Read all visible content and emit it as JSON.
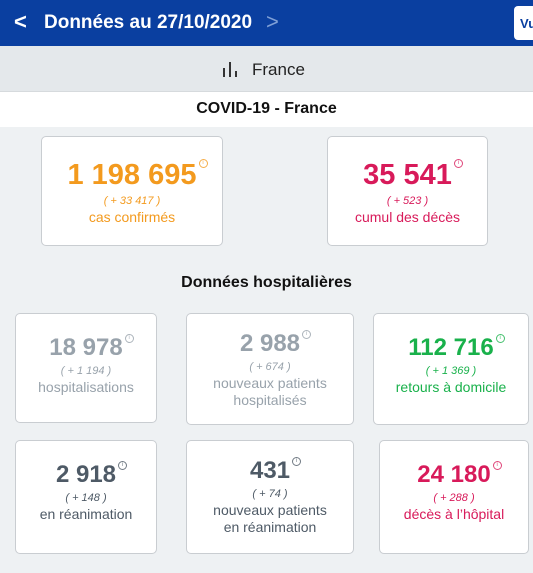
{
  "topbar": {
    "title": "Données au 27/10/2020",
    "back_glyph": "<",
    "forward_glyph": ">",
    "vu_label": "Vu"
  },
  "region": {
    "label": "France",
    "icon": "bar-chart-icon"
  },
  "covid": {
    "title": "COVID-19 - France",
    "cards": [
      {
        "value": "1 198 695",
        "delta": "( + 33 417 )",
        "label": "cas confirmés",
        "color": "#f39a1e"
      },
      {
        "value": "35 541",
        "delta": "( + 523 )",
        "label": "cumul des décès",
        "color": "#d81a5a"
      }
    ]
  },
  "hospital": {
    "title": "Données hospitalières",
    "cards": [
      {
        "value": "18 978",
        "delta": "( + 1 194 )",
        "label": "hospitalisations"
      },
      {
        "value": "2 988",
        "delta": "( + 674 )",
        "label_line1": "nouveaux patients",
        "label_line2": "hospitalisés"
      },
      {
        "value": "112 716",
        "delta": "( + 1 369 )",
        "label": "retours à domicile"
      },
      {
        "value": "2 918",
        "delta": "( + 148 )",
        "label": "en réanimation"
      },
      {
        "value": "431",
        "delta": "( + 74 )",
        "label_line1": "nouveaux patients",
        "label_line2": "en réanimation"
      },
      {
        "value": "24 180",
        "delta": "( + 288 )",
        "label": "décès à l’hôpital"
      }
    ]
  },
  "info_glyph": "i"
}
